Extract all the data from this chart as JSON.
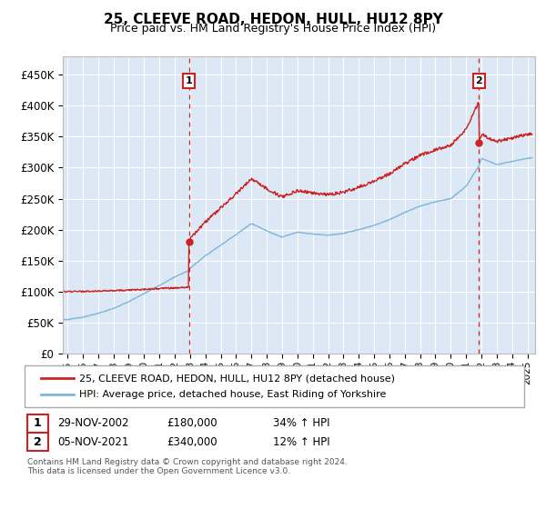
{
  "title": "25, CLEEVE ROAD, HEDON, HULL, HU12 8PY",
  "subtitle": "Price paid vs. HM Land Registry's House Price Index (HPI)",
  "legend_line1": "25, CLEEVE ROAD, HEDON, HULL, HU12 8PY (detached house)",
  "legend_line2": "HPI: Average price, detached house, East Riding of Yorkshire",
  "footnote": "Contains HM Land Registry data © Crown copyright and database right 2024.\nThis data is licensed under the Open Government Licence v3.0.",
  "sale1_date": "29-NOV-2002",
  "sale1_price": "£180,000",
  "sale1_hpi": "34% ↑ HPI",
  "sale1_year": 2002.92,
  "sale1_value": 180000,
  "sale2_date": "05-NOV-2021",
  "sale2_price": "£340,000",
  "sale2_hpi": "12% ↑ HPI",
  "sale2_year": 2021.85,
  "sale2_value": 340000,
  "hpi_color": "#7fb8d8",
  "price_color": "#cc2222",
  "background_color": "#dce8f5",
  "grid_color": "#ffffff",
  "ylim": [
    0,
    480000
  ],
  "xlim_start": 1994.7,
  "xlim_end": 2025.5,
  "yticks": [
    0,
    50000,
    100000,
    150000,
    200000,
    250000,
    300000,
    350000,
    400000,
    450000
  ],
  "ytick_labels": [
    "£0",
    "£50K",
    "£100K",
    "£150K",
    "£200K",
    "£250K",
    "£300K",
    "£350K",
    "£400K",
    "£450K"
  ],
  "xtick_years": [
    1995,
    1996,
    1997,
    1998,
    1999,
    2000,
    2001,
    2002,
    2003,
    2004,
    2005,
    2006,
    2007,
    2008,
    2009,
    2010,
    2011,
    2012,
    2013,
    2014,
    2015,
    2016,
    2017,
    2018,
    2019,
    2020,
    2021,
    2022,
    2023,
    2024,
    2025
  ]
}
